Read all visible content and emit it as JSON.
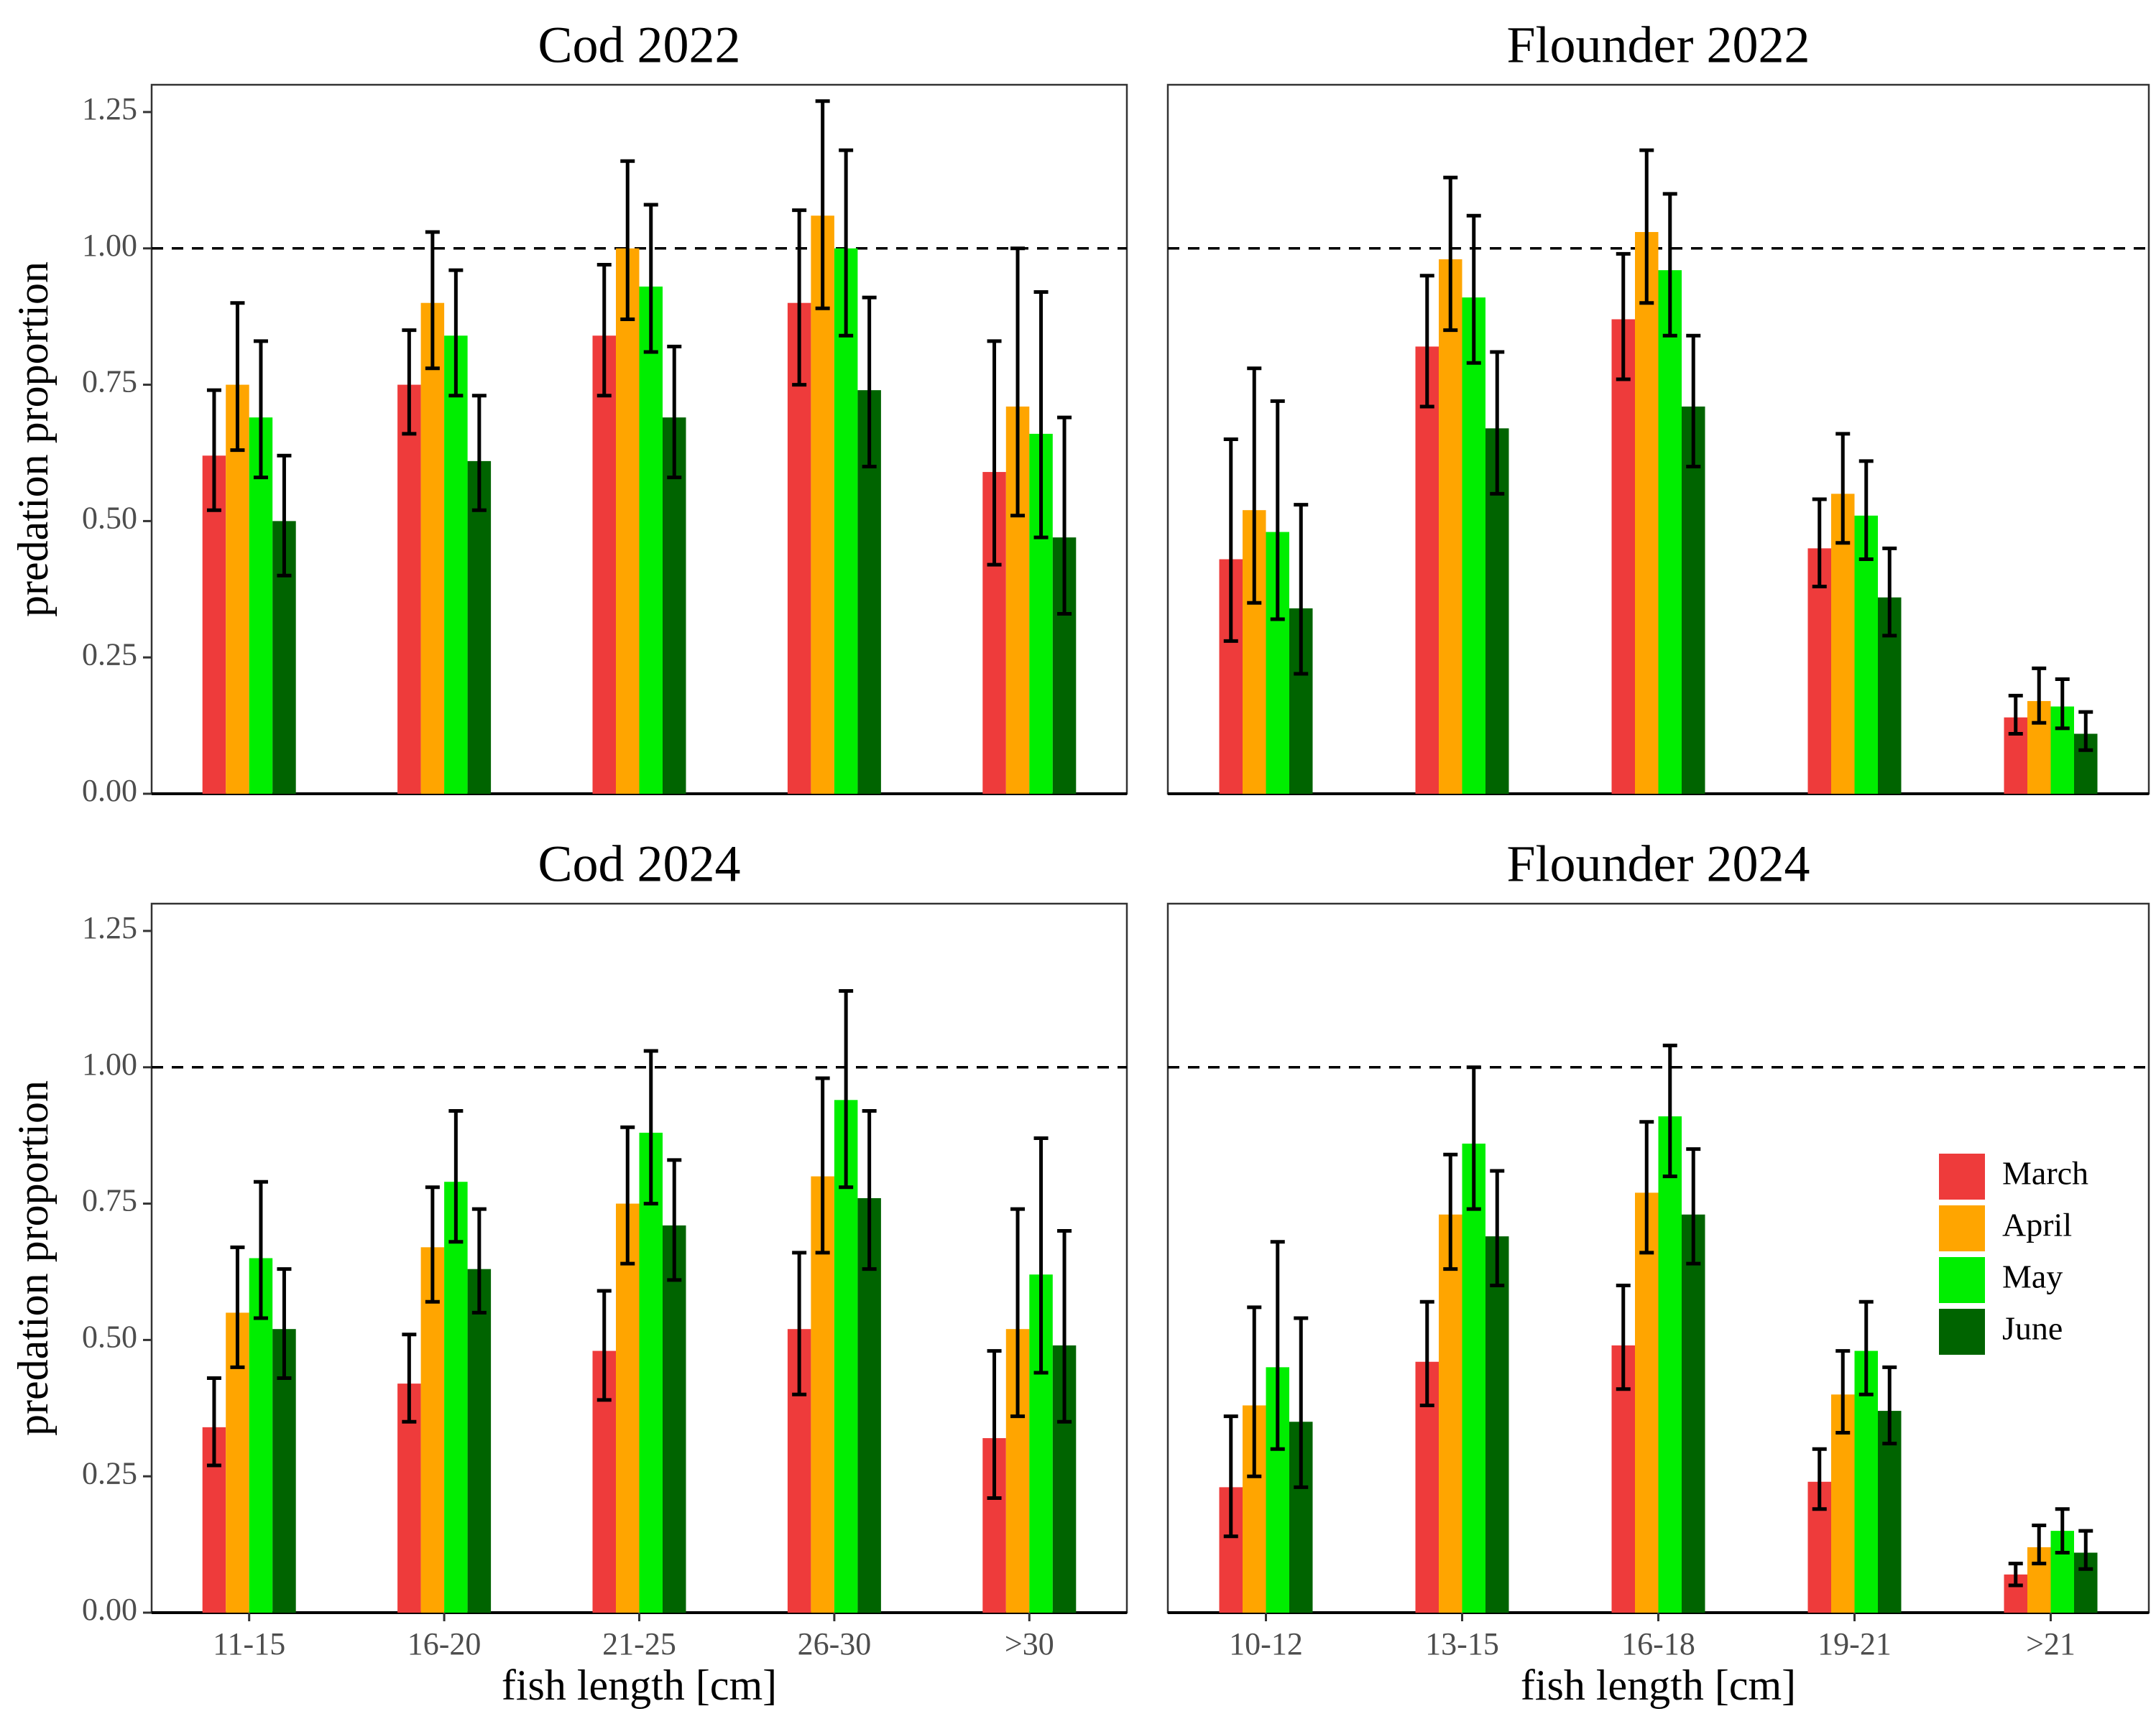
{
  "colors": {
    "March": "#ee3b3b",
    "April": "#ffa500",
    "May": "#00ee00",
    "June": "#006400"
  },
  "y_axis_title": "predation proportion",
  "x_axis_title": "fish length [cm]",
  "legend": [
    "March",
    "April",
    "May",
    "June"
  ],
  "chart_data": [
    {
      "type": "bar",
      "title": "Cod 2022",
      "categories": [
        "11-15",
        "16-20",
        "21-25",
        "26-30",
        ">30"
      ],
      "ylim": [
        0,
        1.3
      ],
      "yticks": [
        "0.00",
        "0.25",
        "0.50",
        "0.75",
        "1.00",
        "1.25"
      ],
      "reference_line": 1.0,
      "series": [
        {
          "name": "March",
          "values": [
            0.62,
            0.75,
            0.84,
            0.9,
            0.59
          ],
          "lower": [
            0.52,
            0.66,
            0.73,
            0.75,
            0.42
          ],
          "upper": [
            0.74,
            0.85,
            0.97,
            1.07,
            0.83
          ]
        },
        {
          "name": "April",
          "values": [
            0.75,
            0.9,
            1.0,
            1.06,
            0.71
          ],
          "lower": [
            0.63,
            0.78,
            0.87,
            0.89,
            0.51
          ],
          "upper": [
            0.9,
            1.03,
            1.16,
            1.27,
            1.0
          ]
        },
        {
          "name": "May",
          "values": [
            0.69,
            0.84,
            0.93,
            1.0,
            0.66
          ],
          "lower": [
            0.58,
            0.73,
            0.81,
            0.84,
            0.47
          ],
          "upper": [
            0.83,
            0.96,
            1.08,
            1.18,
            0.92
          ]
        },
        {
          "name": "June",
          "values": [
            0.5,
            0.61,
            0.69,
            0.74,
            0.47
          ],
          "lower": [
            0.4,
            0.52,
            0.58,
            0.6,
            0.33
          ],
          "upper": [
            0.62,
            0.73,
            0.82,
            0.91,
            0.69
          ]
        }
      ]
    },
    {
      "type": "bar",
      "title": "Flounder 2022",
      "categories": [
        "10-12",
        "13-15",
        "16-18",
        "19-21",
        ">21"
      ],
      "ylim": [
        0,
        1.3
      ],
      "yticks": [],
      "reference_line": 1.0,
      "series": [
        {
          "name": "March",
          "values": [
            0.43,
            0.82,
            0.87,
            0.45,
            0.14
          ],
          "lower": [
            0.28,
            0.71,
            0.76,
            0.38,
            0.11
          ],
          "upper": [
            0.65,
            0.95,
            0.99,
            0.54,
            0.18
          ]
        },
        {
          "name": "April",
          "values": [
            0.52,
            0.98,
            1.03,
            0.55,
            0.17
          ],
          "lower": [
            0.35,
            0.85,
            0.9,
            0.46,
            0.13
          ],
          "upper": [
            0.78,
            1.13,
            1.18,
            0.66,
            0.23
          ]
        },
        {
          "name": "May",
          "values": [
            0.48,
            0.91,
            0.96,
            0.51,
            0.16
          ],
          "lower": [
            0.32,
            0.79,
            0.84,
            0.43,
            0.12
          ],
          "upper": [
            0.72,
            1.06,
            1.1,
            0.61,
            0.21
          ]
        },
        {
          "name": "June",
          "values": [
            0.34,
            0.67,
            0.71,
            0.36,
            0.11
          ],
          "lower": [
            0.22,
            0.55,
            0.6,
            0.29,
            0.08
          ],
          "upper": [
            0.53,
            0.81,
            0.84,
            0.45,
            0.15
          ]
        }
      ]
    },
    {
      "type": "bar",
      "title": "Cod 2024",
      "categories": [
        "11-15",
        "16-20",
        "21-25",
        "26-30",
        ">30"
      ],
      "ylim": [
        0,
        1.3
      ],
      "yticks": [
        "0.00",
        "0.25",
        "0.50",
        "0.75",
        "1.00",
        "1.25"
      ],
      "reference_line": 1.0,
      "series": [
        {
          "name": "March",
          "values": [
            0.34,
            0.42,
            0.48,
            0.52,
            0.32
          ],
          "lower": [
            0.27,
            0.35,
            0.39,
            0.4,
            0.21
          ],
          "upper": [
            0.43,
            0.51,
            0.59,
            0.66,
            0.48
          ]
        },
        {
          "name": "April",
          "values": [
            0.55,
            0.67,
            0.75,
            0.8,
            0.52
          ],
          "lower": [
            0.45,
            0.57,
            0.64,
            0.66,
            0.36
          ],
          "upper": [
            0.67,
            0.78,
            0.89,
            0.98,
            0.74
          ]
        },
        {
          "name": "May",
          "values": [
            0.65,
            0.79,
            0.88,
            0.94,
            0.62
          ],
          "lower": [
            0.54,
            0.68,
            0.75,
            0.78,
            0.44
          ],
          "upper": [
            0.79,
            0.92,
            1.03,
            1.14,
            0.87
          ]
        },
        {
          "name": "June",
          "values": [
            0.52,
            0.63,
            0.71,
            0.76,
            0.49
          ],
          "lower": [
            0.43,
            0.55,
            0.61,
            0.63,
            0.35
          ],
          "upper": [
            0.63,
            0.74,
            0.83,
            0.92,
            0.7
          ]
        }
      ]
    },
    {
      "type": "bar",
      "title": "Flounder 2024",
      "categories": [
        "10-12",
        "13-15",
        "16-18",
        "19-21",
        ">21"
      ],
      "ylim": [
        0,
        1.3
      ],
      "yticks": [],
      "reference_line": 1.0,
      "series": [
        {
          "name": "March",
          "values": [
            0.23,
            0.46,
            0.49,
            0.24,
            0.07
          ],
          "lower": [
            0.14,
            0.38,
            0.41,
            0.19,
            0.05
          ],
          "upper": [
            0.36,
            0.57,
            0.6,
            0.3,
            0.09
          ]
        },
        {
          "name": "April",
          "values": [
            0.38,
            0.73,
            0.77,
            0.4,
            0.12
          ],
          "lower": [
            0.25,
            0.63,
            0.66,
            0.33,
            0.09
          ],
          "upper": [
            0.56,
            0.84,
            0.9,
            0.48,
            0.16
          ]
        },
        {
          "name": "May",
          "values": [
            0.45,
            0.86,
            0.91,
            0.48,
            0.15
          ],
          "lower": [
            0.3,
            0.74,
            0.8,
            0.4,
            0.11
          ],
          "upper": [
            0.68,
            1.0,
            1.04,
            0.57,
            0.19
          ]
        },
        {
          "name": "June",
          "values": [
            0.35,
            0.69,
            0.73,
            0.37,
            0.11
          ],
          "lower": [
            0.23,
            0.6,
            0.64,
            0.31,
            0.08
          ],
          "upper": [
            0.54,
            0.81,
            0.85,
            0.45,
            0.15
          ]
        }
      ]
    }
  ]
}
